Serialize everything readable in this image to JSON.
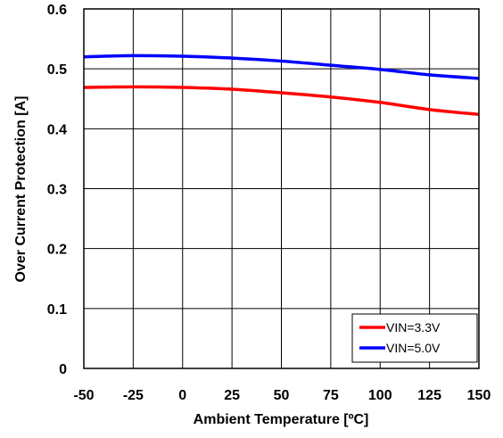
{
  "chart_data": {
    "type": "line",
    "title": "",
    "xlabel": "Ambient Temperature [ºC]",
    "ylabel": "Over Current Protection [A]",
    "xlim": [
      -50,
      150
    ],
    "ylim": [
      0,
      0.6
    ],
    "x_ticks": [
      "-50",
      "-25",
      "0",
      "25",
      "50",
      "75",
      "100",
      "125",
      "150"
    ],
    "y_ticks": [
      "0",
      "0.1",
      "0.2",
      "0.3",
      "0.4",
      "0.5",
      "0.6"
    ],
    "grid": true,
    "legend_position": "bottom-right",
    "series": [
      {
        "name": "VIN=3.3V",
        "color": "#ff0000",
        "x": [
          -50,
          -25,
          0,
          25,
          50,
          75,
          100,
          125,
          150
        ],
        "y": [
          0.469,
          0.47,
          0.469,
          0.466,
          0.46,
          0.453,
          0.444,
          0.432,
          0.424
        ]
      },
      {
        "name": "VIN=5.0V",
        "color": "#0000ff",
        "x": [
          -50,
          -25,
          0,
          25,
          50,
          75,
          100,
          125,
          150
        ],
        "y": [
          0.52,
          0.522,
          0.521,
          0.518,
          0.513,
          0.506,
          0.499,
          0.49,
          0.484
        ]
      }
    ]
  }
}
